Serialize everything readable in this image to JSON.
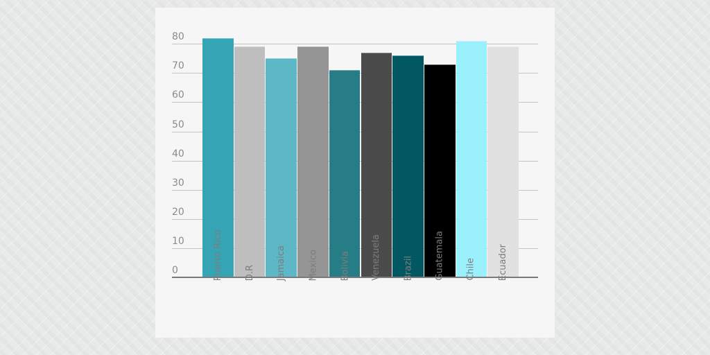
{
  "chart_data": {
    "type": "bar",
    "title": "",
    "xlabel": "",
    "ylabel": "",
    "categories": [
      "Puerto Rico",
      "D.R",
      "Jamaica",
      "Mexico",
      "Bolivia",
      "Venezuela",
      "Brazil",
      "Guatemala",
      "Chile",
      "Ecuador"
    ],
    "values": [
      82,
      79,
      75,
      79,
      71,
      77,
      76,
      73,
      81,
      79
    ],
    "colors": [
      "#35a5b6",
      "#bebebe",
      "#5cb8c6",
      "#959595",
      "#277d86",
      "#4b4b4b",
      "#025862",
      "#000000",
      "#9af1fd",
      "#e1e1e1"
    ],
    "ylim": [
      0,
      80
    ],
    "yticks": [
      0,
      10,
      20,
      30,
      40,
      50,
      60,
      70,
      80
    ],
    "grid": true,
    "legend": "none",
    "xtick_rotation": -90
  },
  "yaxis": {
    "labels": [
      "0",
      "10",
      "20",
      "30",
      "40",
      "50",
      "60",
      "70",
      "80"
    ]
  }
}
